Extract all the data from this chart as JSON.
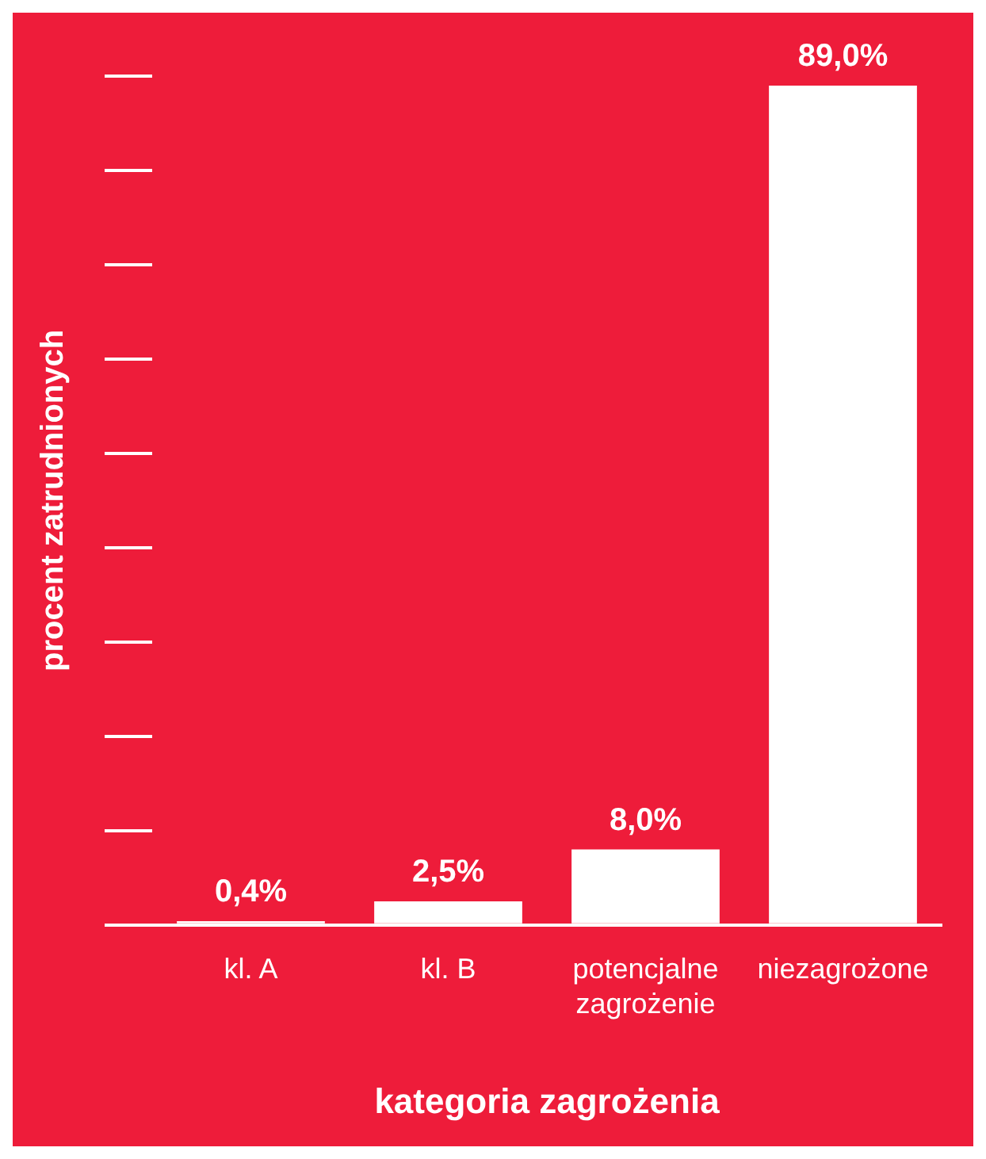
{
  "chart_data": {
    "type": "bar",
    "xlabel": "kategoria zagrożenia",
    "ylabel": "procent zatrudnionych",
    "categories": [
      "kl. A",
      "kl. B",
      "potencjalne zagrożenie",
      "niezagrożone"
    ],
    "values": [
      0.4,
      2.5,
      8.0,
      89.0
    ],
    "color": "#ffffff",
    "value_labels": [
      "0,4%",
      "2,5%",
      "8,0%",
      "89,0%"
    ],
    "tick_labels": "x",
    "grid": false,
    "legend": false
  }
}
